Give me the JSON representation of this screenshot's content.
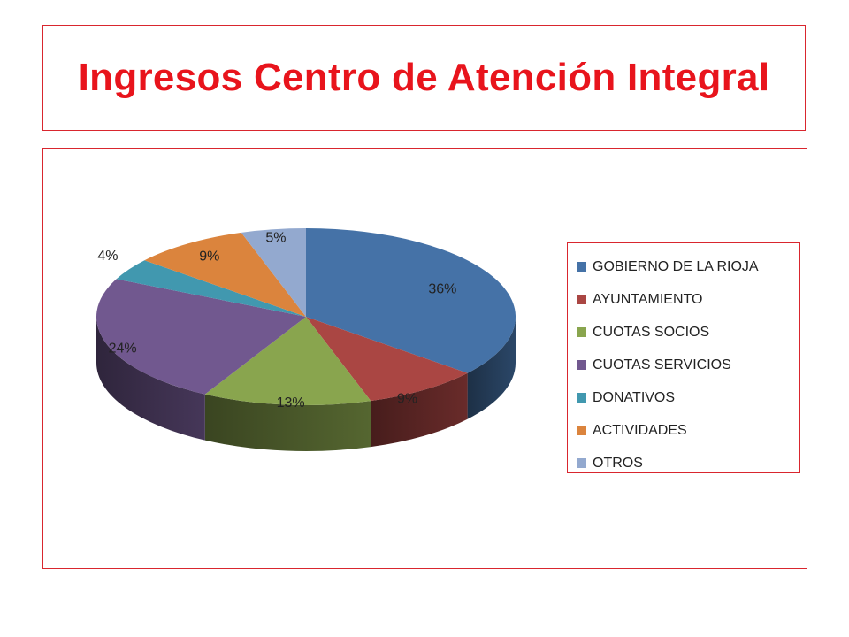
{
  "title": "Ingresos Centro de Atención Integral",
  "colors": {
    "title": "#e8141c",
    "border": "#d9262e"
  },
  "chart_data": {
    "type": "pie",
    "style": "3d",
    "legend_position": "right",
    "categories": [
      "GOBIERNO DE LA RIOJA",
      "AYUNTAMIENTO",
      "CUOTAS SOCIOS",
      "CUOTAS SERVICIOS",
      "DONATIVOS",
      "ACTIVIDADES",
      "OTROS"
    ],
    "values": [
      36,
      9,
      13,
      24,
      4,
      9,
      5
    ],
    "labels": [
      "36%",
      "9%",
      "13%",
      "24%",
      "4%",
      "9%",
      "5%"
    ],
    "colors": [
      "#4572a7",
      "#aa4643",
      "#89a54e",
      "#71588f",
      "#4198af",
      "#db843d",
      "#93a9cf"
    ]
  }
}
